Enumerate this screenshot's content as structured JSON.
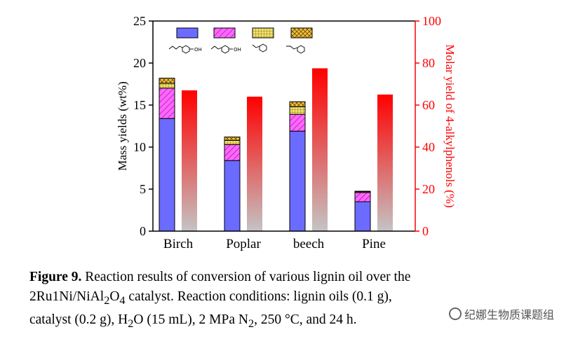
{
  "chart_data": {
    "type": "bar",
    "categories": [
      "Birch",
      "Poplar",
      "beech",
      "Pine"
    ],
    "left_axis": {
      "label": "Mass yields (wt%)",
      "ylim": [
        0,
        25
      ],
      "ticks": [
        0,
        5,
        10,
        15,
        20,
        25
      ]
    },
    "right_axis": {
      "label": "Molar yield of 4-alkylphenols (%)",
      "ylim": [
        0,
        100
      ],
      "ticks": [
        0,
        20,
        40,
        60,
        80,
        100
      ],
      "color": "#ff0000"
    },
    "stacked_series": [
      {
        "name": "4-propylphenol",
        "color": "#6b6bff",
        "pattern": "solid",
        "values": [
          13.4,
          8.4,
          11.9,
          3.5
        ]
      },
      {
        "name": "4-ethylphenol",
        "color": "#ff66ff",
        "pattern": "hatch",
        "values": [
          3.6,
          1.9,
          2.0,
          1.1
        ]
      },
      {
        "name": "propylbenzene",
        "color": "#f0e070",
        "pattern": "grid",
        "values": [
          0.6,
          0.5,
          0.9,
          0.1
        ]
      },
      {
        "name": "ethylbenzene",
        "color": "#f0c040",
        "pattern": "crosshatch",
        "values": [
          0.6,
          0.4,
          0.6,
          0.05
        ]
      }
    ],
    "molar_yield_series": {
      "name": "Molar yield of 4-alkylphenols",
      "values": [
        67,
        64,
        77.5,
        65
      ],
      "gradient": [
        "#ff0000",
        "#c0c0c0"
      ]
    }
  },
  "caption": {
    "label": "Figure 9.",
    "line1": " Reaction results of conversion of various lignin oil over the",
    "line2a": "2Ru1Ni/NiAl",
    "sub1": "2",
    "line2b": "O",
    "sub2": "4",
    "line2c": " catalyst. Reaction conditions: lignin oils (0.1 g),",
    "line3a": "catalyst (0.2 g), H",
    "sub3": "2",
    "line3b": "O (15 mL), 2 MPa N",
    "sub4": "2",
    "line3c": ", 250 °C, and 24 h."
  },
  "watermark": {
    "text": "纪娜生物质课题组"
  }
}
